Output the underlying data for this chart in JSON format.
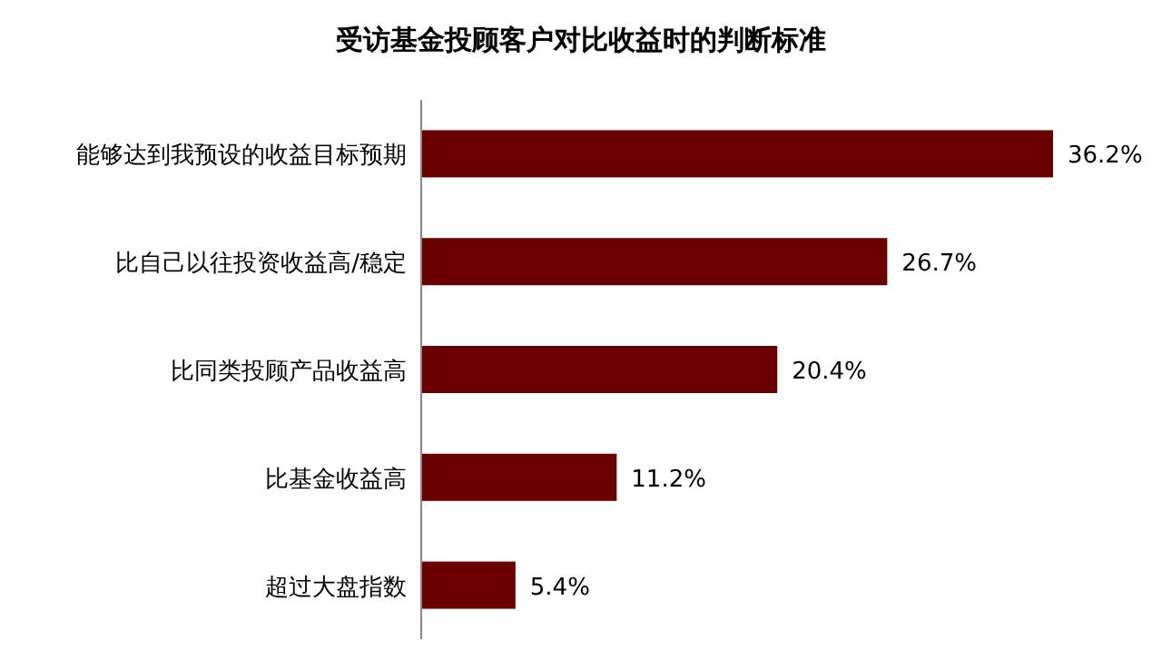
{
  "chart_data": {
    "type": "bar",
    "orientation": "horizontal",
    "title": "受访基金投顾客户对比收益时的判断标准",
    "categories": [
      "能够达到我预设的收益目标预期",
      "比自己以往投资收益高/稳定",
      "比同类投顾产品收益高",
      "比基金收益高",
      "超过大盘指数"
    ],
    "values": [
      36.2,
      26.7,
      20.4,
      11.2,
      5.4
    ],
    "value_labels": [
      "36.2%",
      "26.7%",
      "20.4%",
      "11.2%",
      "5.4%"
    ],
    "color": "#6b0000"
  }
}
